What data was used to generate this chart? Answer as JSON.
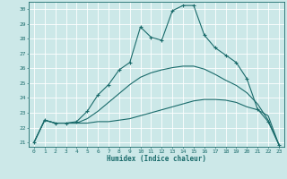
{
  "xlabel": "Humidex (Indice chaleur)",
  "xlim": [
    -0.5,
    23.5
  ],
  "ylim": [
    20.7,
    30.5
  ],
  "xticks": [
    0,
    1,
    2,
    3,
    4,
    5,
    6,
    7,
    8,
    9,
    10,
    11,
    12,
    13,
    14,
    15,
    16,
    17,
    18,
    19,
    20,
    21,
    22,
    23
  ],
  "yticks": [
    21,
    22,
    23,
    24,
    25,
    26,
    27,
    28,
    29,
    30
  ],
  "background_color": "#cce8e8",
  "grid_color": "#aacccc",
  "line_color": "#1a6b6b",
  "lines": [
    {
      "x": [
        0,
        1,
        2,
        3,
        4,
        5,
        6,
        7,
        8,
        9,
        10,
        11,
        12,
        13,
        14,
        15,
        16,
        17,
        18,
        19,
        20,
        21,
        22,
        23
      ],
      "y": [
        21.0,
        22.5,
        22.3,
        22.3,
        22.3,
        22.3,
        22.4,
        22.4,
        22.5,
        22.6,
        22.8,
        23.0,
        23.2,
        23.4,
        23.6,
        23.8,
        23.9,
        23.9,
        23.85,
        23.7,
        23.4,
        23.2,
        22.8,
        20.85
      ],
      "marker": false
    },
    {
      "x": [
        0,
        1,
        2,
        3,
        4,
        5,
        6,
        7,
        8,
        9,
        10,
        11,
        12,
        13,
        14,
        15,
        16,
        17,
        18,
        19,
        20,
        21,
        22,
        23
      ],
      "y": [
        21.0,
        22.5,
        22.3,
        22.3,
        22.3,
        22.6,
        23.1,
        23.7,
        24.3,
        24.9,
        25.4,
        25.7,
        25.9,
        26.05,
        26.15,
        26.15,
        25.95,
        25.6,
        25.2,
        24.85,
        24.35,
        23.6,
        22.5,
        20.85
      ],
      "marker": false
    },
    {
      "x": [
        0,
        1,
        2,
        3,
        4,
        5,
        6,
        7,
        8,
        9,
        10,
        11,
        12,
        13,
        14,
        15,
        16,
        17,
        18,
        19,
        20,
        21,
        22,
        23
      ],
      "y": [
        21.0,
        22.5,
        22.3,
        22.3,
        22.4,
        23.1,
        24.2,
        24.9,
        25.9,
        26.4,
        28.8,
        28.1,
        27.9,
        29.9,
        30.25,
        30.25,
        28.25,
        27.4,
        26.9,
        26.4,
        25.3,
        23.25,
        22.4,
        20.85
      ],
      "marker": true
    }
  ]
}
